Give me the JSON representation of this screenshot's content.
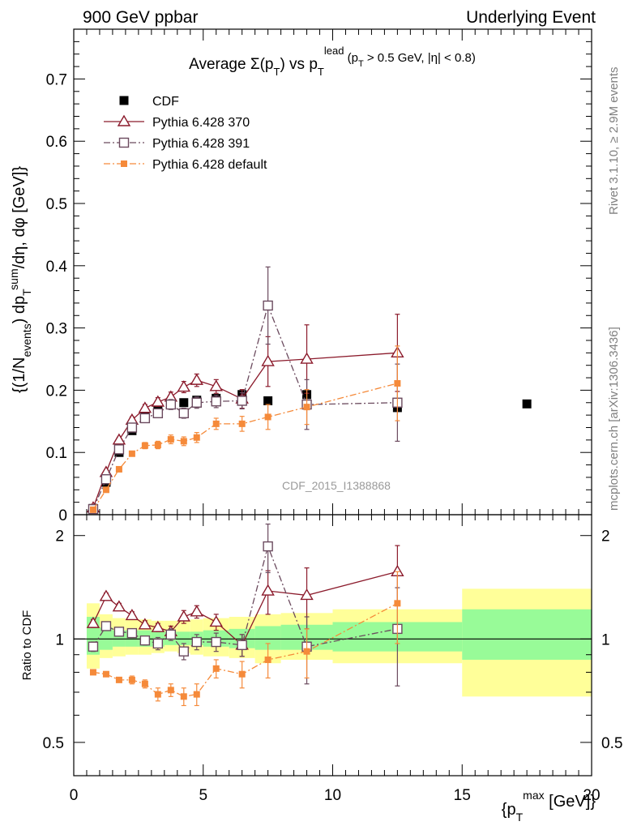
{
  "header": {
    "left": "900 GeV ppbar",
    "right": "Underlying Event"
  },
  "side": {
    "rivet": "Rivet 3.1.10, ≥ 2.9M events",
    "mcplots": "mcplots.cern.ch [arXiv:1306.3436]"
  },
  "colors": {
    "cdf": "#000000",
    "p370": "#8b1a2b",
    "p391": "#6b4a5e",
    "pdef": "#f58a3a",
    "band_inner": "#98fb98",
    "band_outer": "#ffff99"
  },
  "chart_data": [
    {
      "type": "scatter",
      "title": "Average Σ(pT) vs pT lead (pT > 0.5 GeV, |η| < 0.8)",
      "ylabel": "{(1/N events) dp T sum/dη, dφ [GeV]}",
      "xlabel": "",
      "watermark": "CDF_2015_I1388868",
      "xlim": [
        0,
        20
      ],
      "ylim": [
        0,
        0.78
      ],
      "yticks": [
        "0",
        "0.1",
        "0.2",
        "0.3",
        "0.4",
        "0.5",
        "0.6",
        "0.7"
      ],
      "legend_position": "top-left",
      "series": [
        {
          "name": "CDF",
          "marker": "filled-square",
          "x": [
            0.75,
            1.25,
            1.75,
            2.25,
            2.75,
            3.25,
            3.75,
            4.25,
            4.75,
            5.5,
            6.5,
            7.5,
            9.0,
            12.5,
            17.5
          ],
          "y": [
            0.01,
            0.052,
            0.1,
            0.135,
            0.157,
            0.168,
            0.18,
            0.18,
            0.184,
            0.187,
            0.193,
            0.183,
            0.193,
            0.172,
            0.178
          ]
        },
        {
          "name": "Pythia 6.428 370",
          "marker": "open-triangle",
          "line": "solid",
          "x": [
            0.75,
            1.25,
            1.75,
            2.25,
            2.75,
            3.25,
            3.75,
            4.25,
            4.75,
            5.5,
            6.5,
            7.5,
            9.0,
            12.5
          ],
          "y": [
            0.011,
            0.068,
            0.12,
            0.152,
            0.171,
            0.181,
            0.189,
            0.205,
            0.216,
            0.206,
            0.186,
            0.246,
            0.25,
            0.26
          ],
          "yerr": [
            0.002,
            0.003,
            0.004,
            0.005,
            0.006,
            0.007,
            0.008,
            0.009,
            0.01,
            0.011,
            0.015,
            0.04,
            0.055,
            0.062
          ]
        },
        {
          "name": "Pythia 6.428 391",
          "marker": "open-square",
          "line": "dash-dot",
          "x": [
            0.75,
            1.25,
            1.75,
            2.25,
            2.75,
            3.25,
            3.75,
            4.25,
            4.75,
            5.5,
            6.5,
            7.5,
            9.0,
            12.5
          ],
          "y": [
            0.009,
            0.057,
            0.105,
            0.14,
            0.155,
            0.163,
            0.177,
            0.163,
            0.18,
            0.182,
            0.183,
            0.336,
            0.177,
            0.18
          ],
          "yerr": [
            0.002,
            0.003,
            0.004,
            0.005,
            0.006,
            0.007,
            0.008,
            0.008,
            0.009,
            0.01,
            0.013,
            0.062,
            0.04,
            0.062
          ]
        },
        {
          "name": "Pythia 6.428 default",
          "marker": "small-filled-square",
          "line": "dash-dot",
          "x": [
            0.75,
            1.25,
            1.75,
            2.25,
            2.75,
            3.25,
            3.75,
            4.25,
            4.75,
            5.5,
            6.5,
            7.5,
            9.0,
            12.5
          ],
          "y": [
            0.008,
            0.04,
            0.073,
            0.098,
            0.111,
            0.112,
            0.121,
            0.118,
            0.124,
            0.146,
            0.146,
            0.157,
            0.173,
            0.211
          ],
          "yerr": [
            0.002,
            0.003,
            0.004,
            0.004,
            0.005,
            0.006,
            0.007,
            0.007,
            0.008,
            0.009,
            0.012,
            0.02,
            0.028,
            0.06
          ]
        }
      ]
    },
    {
      "type": "scatter",
      "title": "",
      "ylabel": "Ratio to CDF",
      "xlabel": "{p T max [GeV]}",
      "xlim": [
        0,
        20
      ],
      "ylim": [
        0.4,
        2.3
      ],
      "log_y": true,
      "yticks": [
        "0.5",
        "1",
        "2"
      ],
      "xticks": [
        "0",
        "5",
        "10",
        "15",
        "20"
      ],
      "band_bins": {
        "edges": [
          0.5,
          1.0,
          1.5,
          2.0,
          2.5,
          3.0,
          3.5,
          4.0,
          4.5,
          5.0,
          6.0,
          7.0,
          8.0,
          10.0,
          15.0,
          20.0
        ],
        "stat_lo": [
          0.9,
          0.93,
          0.95,
          0.95,
          0.95,
          0.95,
          0.96,
          0.96,
          0.96,
          0.95,
          0.94,
          0.93,
          0.93,
          0.92,
          0.87
        ],
        "stat_hi": [
          1.16,
          1.08,
          1.06,
          1.06,
          1.06,
          1.06,
          1.05,
          1.05,
          1.05,
          1.06,
          1.07,
          1.09,
          1.1,
          1.12,
          1.22
        ],
        "tot_lo": [
          0.82,
          0.88,
          0.89,
          0.9,
          0.9,
          0.91,
          0.92,
          0.91,
          0.9,
          0.89,
          0.88,
          0.85,
          0.87,
          0.85,
          0.68
        ],
        "tot_hi": [
          1.27,
          1.18,
          1.15,
          1.14,
          1.14,
          1.13,
          1.13,
          1.13,
          1.14,
          1.15,
          1.16,
          1.18,
          1.19,
          1.22,
          1.4
        ]
      },
      "series": [
        {
          "name": "Pythia 6.428 370",
          "x": [
            0.75,
            1.25,
            1.75,
            2.25,
            2.75,
            3.25,
            3.75,
            4.25,
            4.75,
            5.5,
            6.5,
            7.5,
            9.0,
            12.5
          ],
          "y": [
            1.11,
            1.33,
            1.24,
            1.17,
            1.1,
            1.08,
            1.05,
            1.16,
            1.2,
            1.12,
            0.96,
            1.38,
            1.34,
            1.57
          ],
          "yerr": [
            0.03,
            0.03,
            0.03,
            0.03,
            0.03,
            0.03,
            0.04,
            0.05,
            0.05,
            0.06,
            0.07,
            0.2,
            0.27,
            0.3
          ]
        },
        {
          "name": "Pythia 6.428 391",
          "x": [
            0.75,
            1.25,
            1.75,
            2.25,
            2.75,
            3.25,
            3.75,
            4.25,
            4.75,
            5.5,
            6.5,
            7.5,
            9.0,
            12.5
          ],
          "y": [
            0.95,
            1.09,
            1.05,
            1.04,
            0.99,
            0.97,
            1.03,
            0.92,
            0.98,
            0.98,
            0.96,
            1.86,
            0.95,
            1.07
          ],
          "yerr": [
            0.03,
            0.03,
            0.03,
            0.03,
            0.03,
            0.04,
            0.04,
            0.05,
            0.05,
            0.06,
            0.07,
            0.3,
            0.21,
            0.34
          ]
        },
        {
          "name": "Pythia 6.428 default",
          "x": [
            0.75,
            1.25,
            1.75,
            2.25,
            2.75,
            3.25,
            3.75,
            4.25,
            4.75,
            5.5,
            6.5,
            7.5,
            9.0,
            12.5
          ],
          "y": [
            0.8,
            0.79,
            0.76,
            0.76,
            0.74,
            0.69,
            0.71,
            0.68,
            0.69,
            0.82,
            0.79,
            0.87,
            0.92,
            1.27
          ],
          "yerr": [
            0.01,
            0.01,
            0.01,
            0.02,
            0.02,
            0.03,
            0.03,
            0.04,
            0.05,
            0.05,
            0.07,
            0.1,
            0.15,
            0.3
          ]
        }
      ]
    }
  ]
}
